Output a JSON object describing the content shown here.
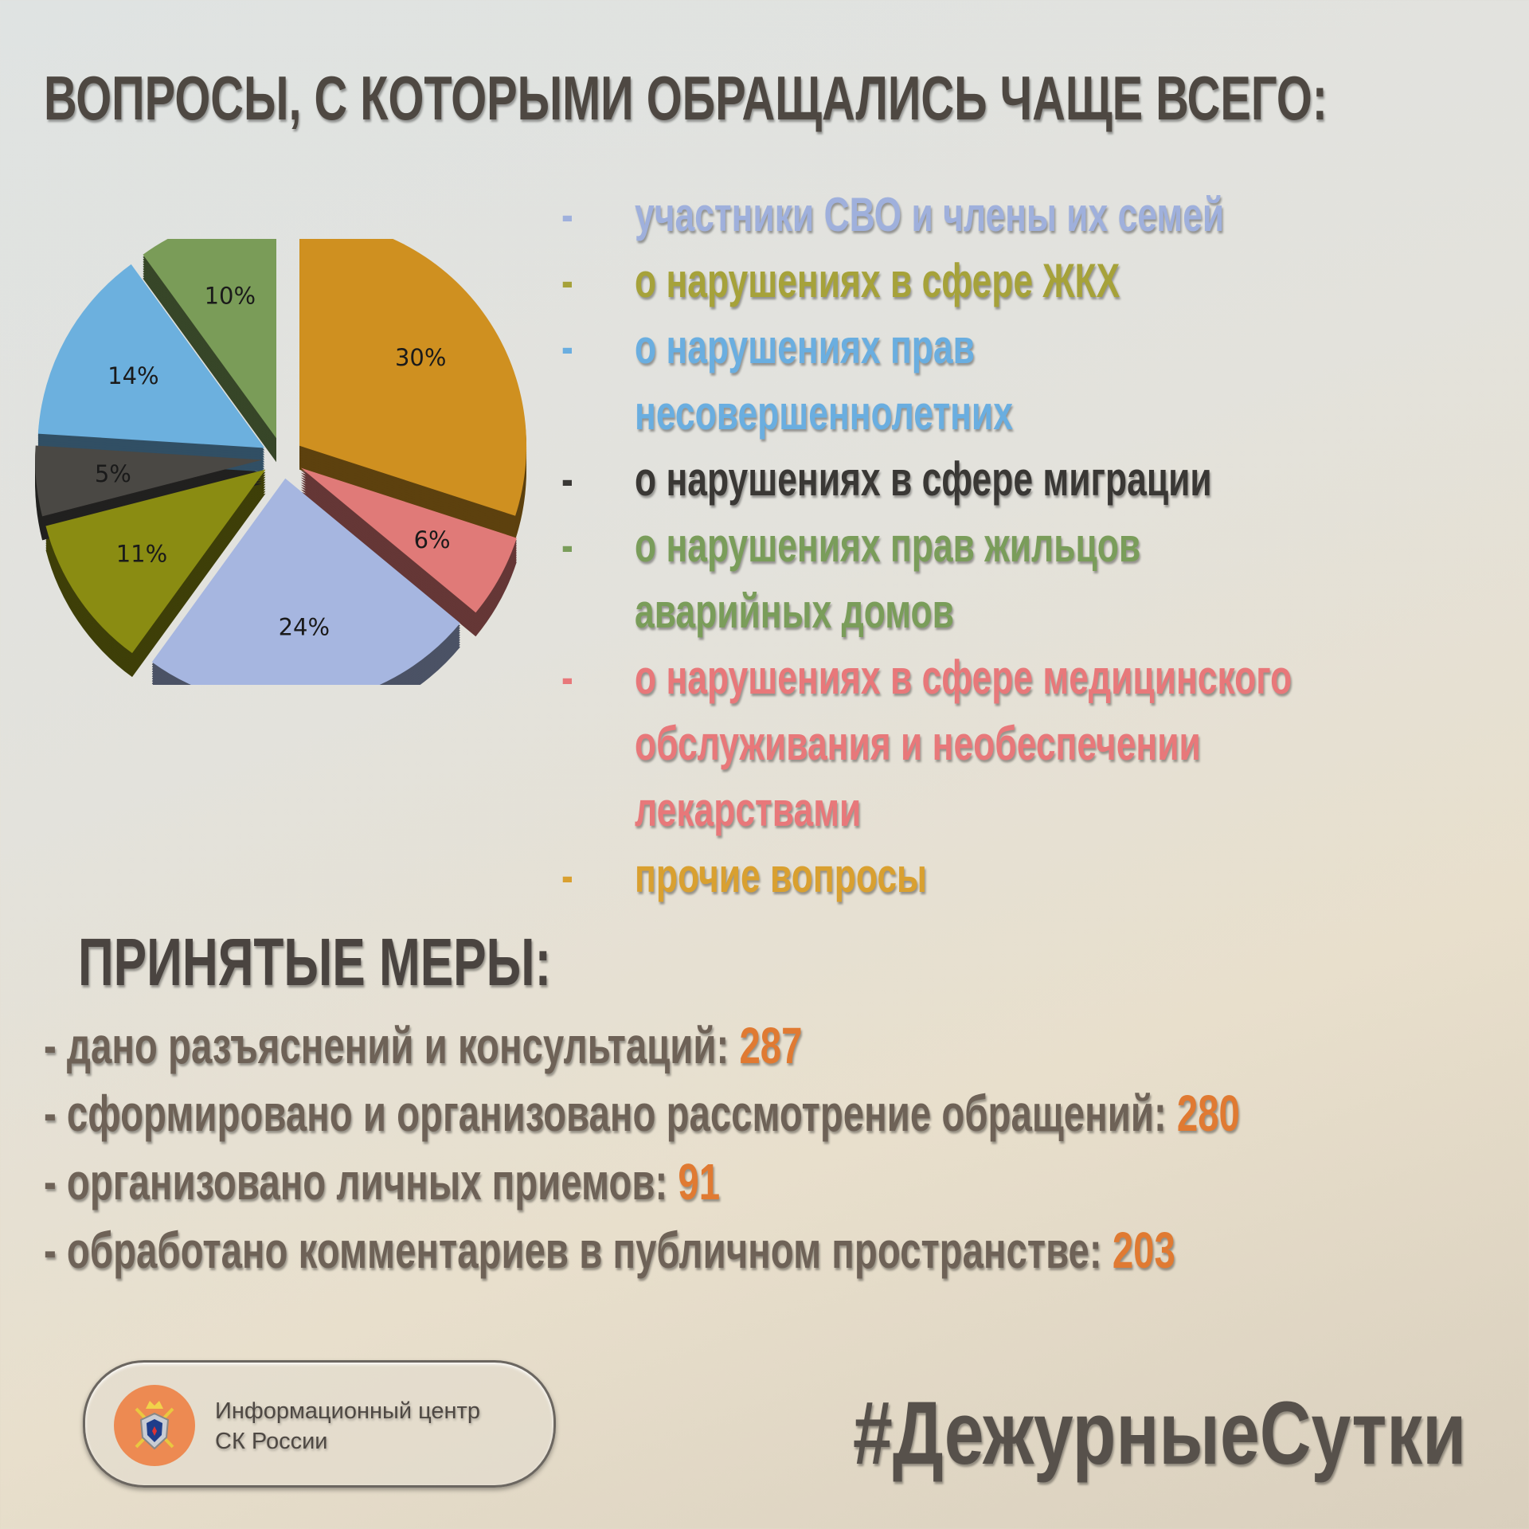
{
  "title": "ВОПРОСЫ, С КОТОРЫМИ ОБРАЩАЛИСЬ ЧАЩЕ ВСЕГО:",
  "legend": [
    {
      "lines": [
        "участники СВО и члены их семей"
      ],
      "color": "#9fb0dc"
    },
    {
      "lines": [
        "о нарушениях в сфере ЖКХ"
      ],
      "color": "#a6a23a"
    },
    {
      "lines": [
        "о нарушениях прав",
        "несовершеннолетних"
      ],
      "color": "#6aaee0"
    },
    {
      "lines": [
        "о нарушениях в сфере миграции"
      ],
      "color": "#3a3835"
    },
    {
      "lines": [
        "о нарушениях прав жильцов",
        "аварийных домов"
      ],
      "color": "#7a9d5a"
    },
    {
      "lines": [
        "о нарушениях в сфере медицинского",
        "обслуживания и необеспечении",
        "лекарствами"
      ],
      "color": "#e8787a"
    },
    {
      "lines": [
        "прочие вопросы"
      ],
      "color": "#d9a030"
    }
  ],
  "chart_data": {
    "type": "pie",
    "style": "3d-exploded",
    "labels": [
      "30%",
      "6%",
      "24%",
      "11%",
      "5%",
      "14%",
      "10%"
    ],
    "values": [
      30,
      6,
      24,
      11,
      5,
      14,
      10
    ],
    "colors": [
      "#cf9020",
      "#e07a78",
      "#a6b6e0",
      "#8a8c12",
      "#4a4844",
      "#6cb0de",
      "#7a9c58"
    ],
    "order": "clockwise from 12 o'clock"
  },
  "measures": {
    "title": "ПРИНЯТЫЕ МЕРЫ:",
    "items": [
      {
        "label": "- дано разъяснений и консультаций:",
        "value": "287"
      },
      {
        "label": "- сформировано и организовано рассмотрение обращений:",
        "value": "280"
      },
      {
        "label": "- организовано личных приемов:",
        "value": "91"
      },
      {
        "label": "-  обработано комментариев в публичном пространстве:",
        "value": "203"
      }
    ]
  },
  "logo": {
    "line1": "Информационный центр",
    "line2": "СК России"
  },
  "hashtag": "#ДежурныеСутки"
}
